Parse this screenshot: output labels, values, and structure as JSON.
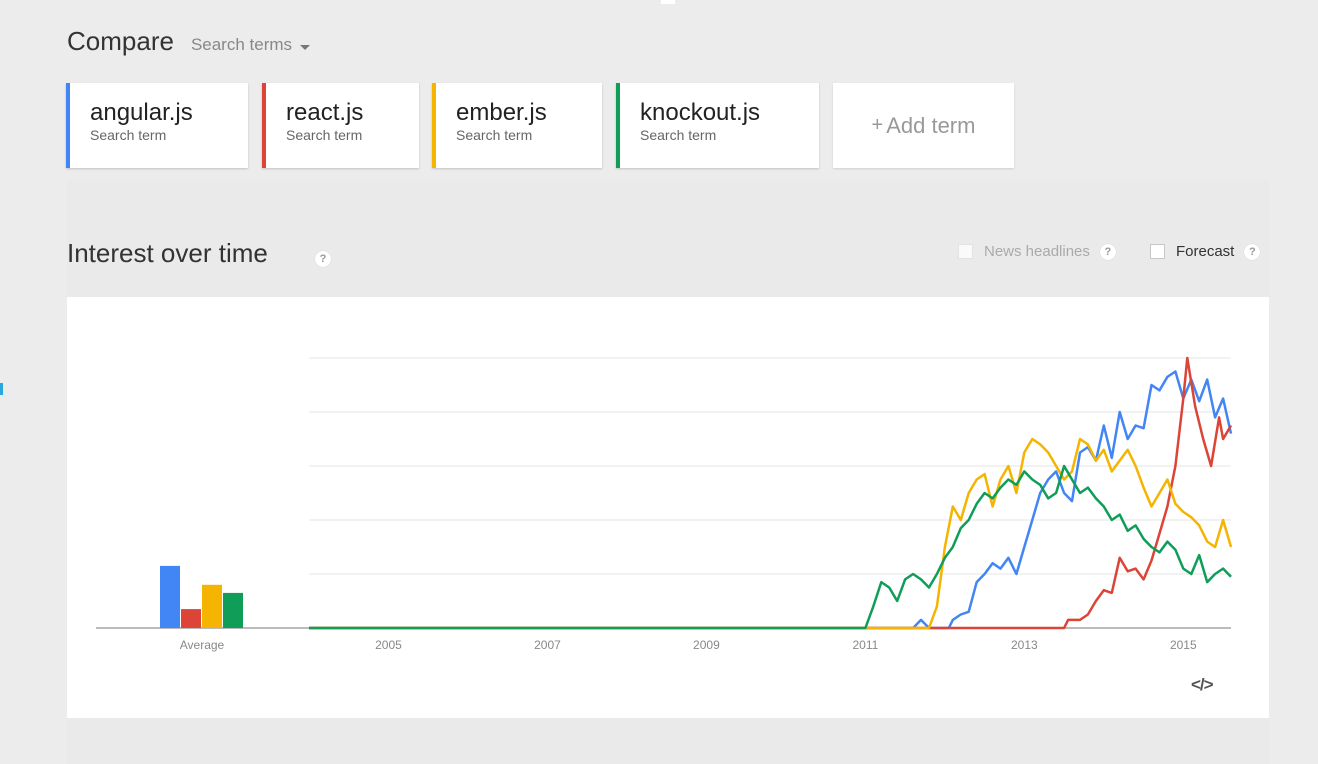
{
  "header": {
    "compare_label": "Compare",
    "search_terms_label": "Search terms"
  },
  "terms": [
    {
      "name": "angular.js",
      "subtitle": "Search term",
      "color": "#4285f4"
    },
    {
      "name": "react.js",
      "subtitle": "Search term",
      "color": "#db4437"
    },
    {
      "name": "ember.js",
      "subtitle": "Search term",
      "color": "#f4b400"
    },
    {
      "name": "knockout.js",
      "subtitle": "Search term",
      "color": "#0f9d58"
    }
  ],
  "add_term_label": "Add term",
  "section": {
    "title": "Interest over time",
    "help_glyph": "?",
    "news_headlines_label": "News headlines",
    "forecast_label": "Forecast",
    "embed_icon": "code-embed-icon"
  },
  "chart_data": {
    "type": "line",
    "average": {
      "label": "Average",
      "values": [
        {
          "term": "angular.js",
          "value": 23
        },
        {
          "term": "react.js",
          "value": 7
        },
        {
          "term": "ember.js",
          "value": 16
        },
        {
          "term": "knockout.js",
          "value": 13
        }
      ]
    },
    "x_ticks": [
      "2005",
      "2007",
      "2009",
      "2011",
      "2013",
      "2015"
    ],
    "x_range": [
      2004.0,
      2015.6
    ],
    "y_range": [
      0,
      100
    ],
    "gridlines": [
      0,
      20,
      40,
      60,
      80,
      100
    ],
    "series": [
      {
        "name": "angular.js",
        "color": "#4285f4",
        "points": [
          [
            2004.0,
            0
          ],
          [
            2011.6,
            0
          ],
          [
            2011.7,
            3
          ],
          [
            2011.8,
            0
          ],
          [
            2012.05,
            0
          ],
          [
            2012.1,
            3
          ],
          [
            2012.2,
            5
          ],
          [
            2012.3,
            6
          ],
          [
            2012.4,
            17
          ],
          [
            2012.5,
            20
          ],
          [
            2012.6,
            24
          ],
          [
            2012.7,
            22
          ],
          [
            2012.8,
            26
          ],
          [
            2012.9,
            20
          ],
          [
            2013.0,
            30
          ],
          [
            2013.1,
            40
          ],
          [
            2013.2,
            50
          ],
          [
            2013.3,
            55
          ],
          [
            2013.4,
            58
          ],
          [
            2013.5,
            50
          ],
          [
            2013.6,
            47
          ],
          [
            2013.7,
            65
          ],
          [
            2013.8,
            67
          ],
          [
            2013.9,
            62
          ],
          [
            2014.0,
            75
          ],
          [
            2014.1,
            63
          ],
          [
            2014.2,
            80
          ],
          [
            2014.3,
            70
          ],
          [
            2014.4,
            75
          ],
          [
            2014.5,
            74
          ],
          [
            2014.6,
            90
          ],
          [
            2014.7,
            88
          ],
          [
            2014.8,
            93
          ],
          [
            2014.9,
            95
          ],
          [
            2015.0,
            85
          ],
          [
            2015.1,
            92
          ],
          [
            2015.2,
            84
          ],
          [
            2015.3,
            92
          ],
          [
            2015.4,
            78
          ],
          [
            2015.5,
            85
          ],
          [
            2015.6,
            72
          ]
        ]
      },
      {
        "name": "react.js",
        "color": "#db4437",
        "points": [
          [
            2004.0,
            0
          ],
          [
            2013.5,
            0
          ],
          [
            2013.55,
            3
          ],
          [
            2013.7,
            3
          ],
          [
            2013.8,
            5
          ],
          [
            2013.9,
            10
          ],
          [
            2014.0,
            14
          ],
          [
            2014.1,
            13
          ],
          [
            2014.2,
            26
          ],
          [
            2014.3,
            21
          ],
          [
            2014.4,
            22
          ],
          [
            2014.5,
            18
          ],
          [
            2014.6,
            25
          ],
          [
            2014.7,
            35
          ],
          [
            2014.8,
            45
          ],
          [
            2014.9,
            60
          ],
          [
            2015.0,
            85
          ],
          [
            2015.05,
            100
          ],
          [
            2015.15,
            82
          ],
          [
            2015.25,
            70
          ],
          [
            2015.35,
            60
          ],
          [
            2015.45,
            78
          ],
          [
            2015.5,
            70
          ],
          [
            2015.6,
            75
          ]
        ]
      },
      {
        "name": "ember.js",
        "color": "#f4b400",
        "points": [
          [
            2004.0,
            0
          ],
          [
            2011.6,
            0
          ],
          [
            2011.8,
            0
          ],
          [
            2011.9,
            8
          ],
          [
            2012.0,
            30
          ],
          [
            2012.1,
            45
          ],
          [
            2012.2,
            40
          ],
          [
            2012.3,
            50
          ],
          [
            2012.4,
            55
          ],
          [
            2012.5,
            57
          ],
          [
            2012.6,
            45
          ],
          [
            2012.7,
            55
          ],
          [
            2012.8,
            60
          ],
          [
            2012.9,
            50
          ],
          [
            2013.0,
            65
          ],
          [
            2013.1,
            70
          ],
          [
            2013.2,
            68
          ],
          [
            2013.3,
            65
          ],
          [
            2013.4,
            60
          ],
          [
            2013.5,
            55
          ],
          [
            2013.6,
            58
          ],
          [
            2013.7,
            70
          ],
          [
            2013.8,
            68
          ],
          [
            2013.9,
            62
          ],
          [
            2014.0,
            66
          ],
          [
            2014.1,
            58
          ],
          [
            2014.2,
            62
          ],
          [
            2014.3,
            66
          ],
          [
            2014.4,
            60
          ],
          [
            2014.5,
            52
          ],
          [
            2014.6,
            45
          ],
          [
            2014.7,
            50
          ],
          [
            2014.8,
            55
          ],
          [
            2014.9,
            46
          ],
          [
            2015.0,
            43
          ],
          [
            2015.1,
            41
          ],
          [
            2015.2,
            38
          ],
          [
            2015.3,
            32
          ],
          [
            2015.4,
            30
          ],
          [
            2015.5,
            40
          ],
          [
            2015.6,
            30
          ]
        ]
      },
      {
        "name": "knockout.js",
        "color": "#0f9d58",
        "points": [
          [
            2004.0,
            0
          ],
          [
            2010.9,
            0
          ],
          [
            2011.0,
            0
          ],
          [
            2011.1,
            8
          ],
          [
            2011.2,
            17
          ],
          [
            2011.3,
            15
          ],
          [
            2011.4,
            10
          ],
          [
            2011.5,
            18
          ],
          [
            2011.6,
            20
          ],
          [
            2011.7,
            18
          ],
          [
            2011.8,
            15
          ],
          [
            2011.9,
            20
          ],
          [
            2012.0,
            26
          ],
          [
            2012.1,
            30
          ],
          [
            2012.2,
            37
          ],
          [
            2012.3,
            40
          ],
          [
            2012.4,
            46
          ],
          [
            2012.5,
            50
          ],
          [
            2012.6,
            48
          ],
          [
            2012.7,
            52
          ],
          [
            2012.8,
            55
          ],
          [
            2012.9,
            53
          ],
          [
            2013.0,
            58
          ],
          [
            2013.1,
            55
          ],
          [
            2013.2,
            53
          ],
          [
            2013.3,
            48
          ],
          [
            2013.4,
            50
          ],
          [
            2013.5,
            60
          ],
          [
            2013.6,
            55
          ],
          [
            2013.7,
            50
          ],
          [
            2013.8,
            52
          ],
          [
            2013.9,
            48
          ],
          [
            2014.0,
            45
          ],
          [
            2014.1,
            40
          ],
          [
            2014.2,
            42
          ],
          [
            2014.3,
            36
          ],
          [
            2014.4,
            38
          ],
          [
            2014.5,
            33
          ],
          [
            2014.6,
            30
          ],
          [
            2014.7,
            28
          ],
          [
            2014.8,
            32
          ],
          [
            2014.9,
            29
          ],
          [
            2015.0,
            22
          ],
          [
            2015.1,
            20
          ],
          [
            2015.2,
            27
          ],
          [
            2015.3,
            17
          ],
          [
            2015.4,
            20
          ],
          [
            2015.5,
            22
          ],
          [
            2015.6,
            19
          ]
        ]
      }
    ]
  }
}
